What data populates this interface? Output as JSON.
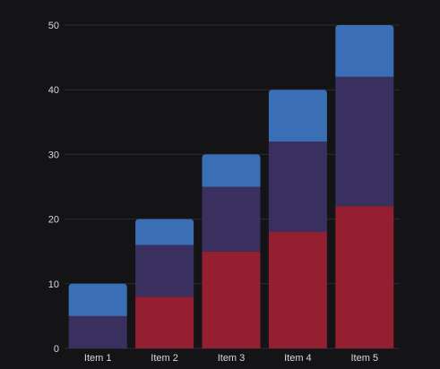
{
  "chart_data": {
    "type": "bar",
    "stacked": true,
    "categories": [
      "Item 1",
      "Item 2",
      "Item 3",
      "Item 4",
      "Item 5"
    ],
    "series": [
      {
        "values": [
          0,
          8,
          15,
          18,
          22
        ],
        "color": "#941f31"
      },
      {
        "values": [
          5,
          8,
          10,
          14,
          20
        ],
        "color": "#3a3060"
      },
      {
        "values": [
          5,
          4,
          5,
          8,
          8
        ],
        "color": "#3a6fb5"
      }
    ],
    "ylim": [
      0,
      50
    ],
    "yticks": [
      0,
      10,
      20,
      30,
      40,
      50
    ],
    "grid": true,
    "title": "",
    "xlabel": "",
    "ylabel": ""
  }
}
